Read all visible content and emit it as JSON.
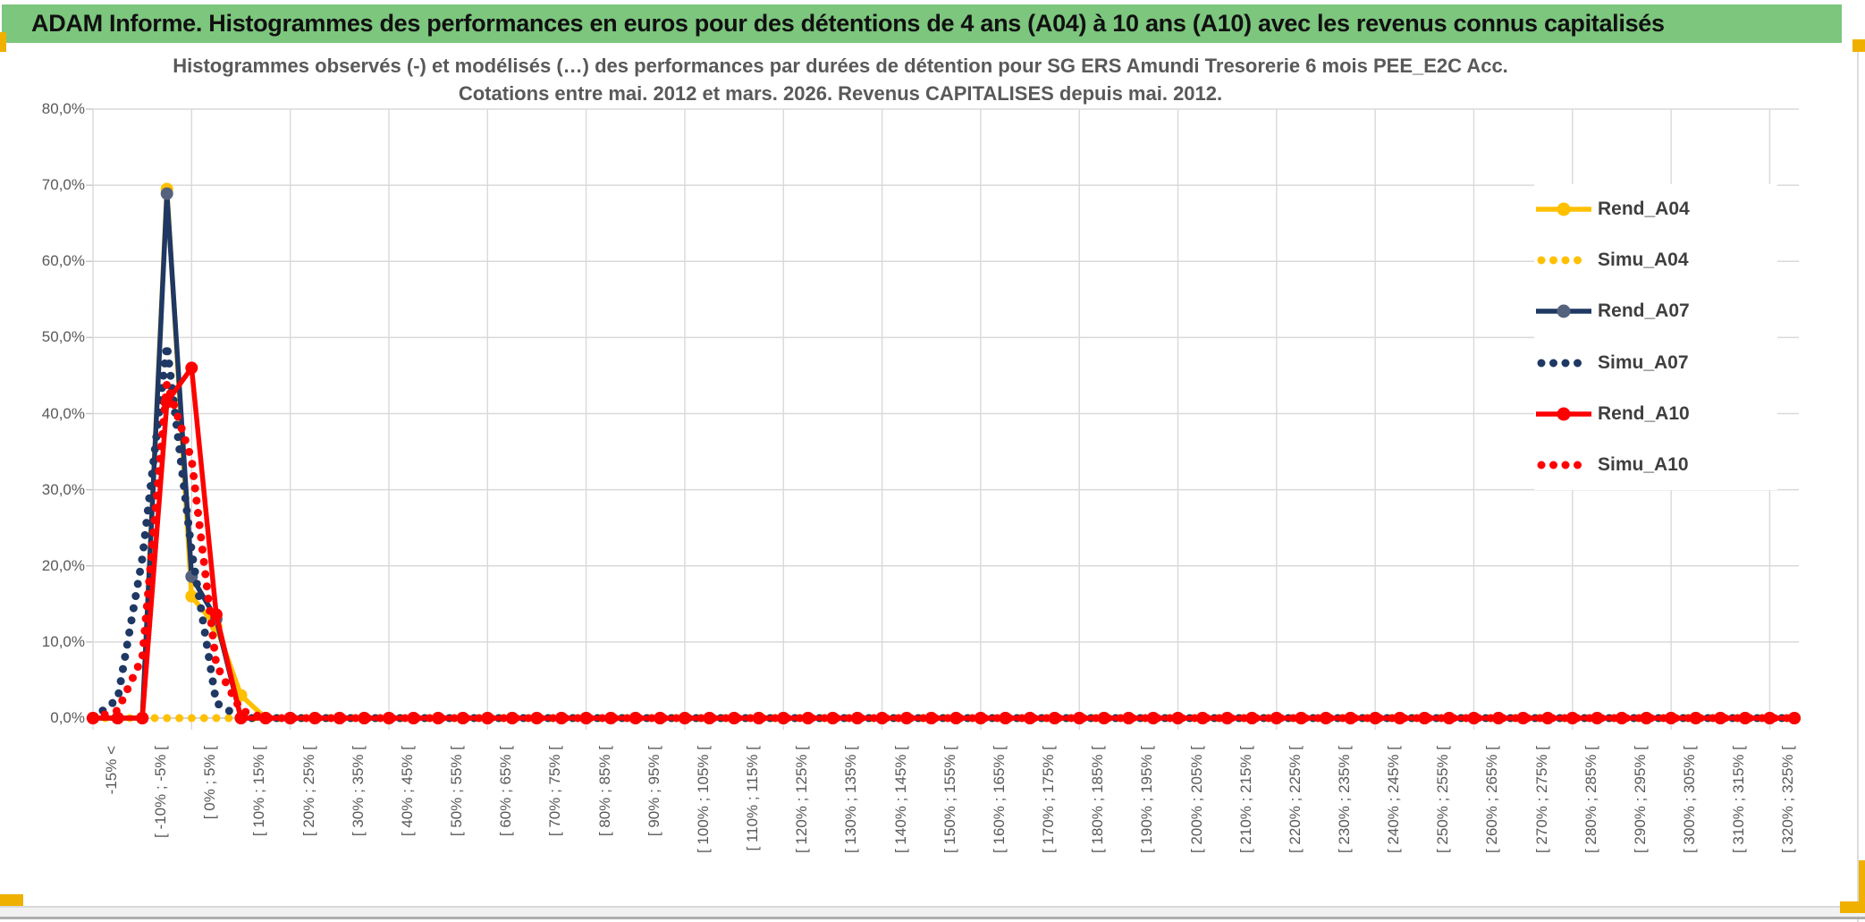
{
  "window": {
    "banner_title": "ADAM Informe. Histogrammes des performances en euros pour des détentions de 4 ans (A04) à 10 ans (A10) avec les revenus connus capitalisés"
  },
  "chart_data": {
    "type": "line",
    "title_line1": "Histogrammes observés (-) et modélisés (…) des performances par durées de détention pour SG ERS Amundi Tresorerie 6 mois PEE_E2C Acc.",
    "title_line2": "Cotations entre mai. 2012 et mars. 2026. Revenus CAPITALISES depuis mai. 2012.",
    "ylim": [
      0,
      80
    ],
    "y_major_unit": 10,
    "y_tick_labels": [
      "0,0%",
      "10,0%",
      "20,0%",
      "30,0%",
      "40,0%",
      "50,0%",
      "60,0%",
      "70,0%",
      "80,0%"
    ],
    "x_tick_labels": [
      "-15% <",
      "[ -10% ; -5% [",
      "[ 0% ; 5% [",
      "[ 10% ; 15% [",
      "[ 20% ; 25% [",
      "[ 30% ; 35% [",
      "[ 40% ; 45% [",
      "[ 50% ; 55% [",
      "[ 60% ; 65% [",
      "[ 70% ; 75% [",
      "[ 80% ; 85% [",
      "[ 90% ; 95% [",
      "[ 100% ; 105% [",
      "[ 110% ; 115% [",
      "[ 120% ; 125% [",
      "[ 130% ; 135% [",
      "[ 140% ; 145% [",
      "[ 150% ; 155% [",
      "[ 160% ; 165% [",
      "[ 170% ; 175% [",
      "[ 180% ; 185% [",
      "[ 190% ; 195% [",
      "[ 200% ; 205% [",
      "[ 210% ; 215% [",
      "[ 220% ; 225% [",
      "[ 230% ; 235% [",
      "[ 240% ; 245% [",
      "[ 250% ; 255% [",
      "[ 260% ; 265% [",
      "[ 270% ; 275% [",
      "[ 280% ; 285% [",
      "[ 290% ; 295% [",
      "[ 300% ; 305% [",
      "[ 310% ; 315% [",
      "[ 320% ; 325% ["
    ],
    "x_label_every": 2,
    "n_categories": 70,
    "default_value": 0,
    "grid": true,
    "legend_position": "right-inside",
    "series": [
      {
        "name": "Rend_A04",
        "style": "solid",
        "color": "#FFC000",
        "marker_color": "#FFC000",
        "values_sparse": {
          "3": 69.5,
          "4": 16,
          "5": 12,
          "6": 3
        }
      },
      {
        "name": "Simu_A04",
        "style": "dotted",
        "color": "#FFC000",
        "values_sparse": {}
      },
      {
        "name": "Rend_A07",
        "style": "solid",
        "color": "#1F3864",
        "marker_color": "#55627E",
        "values_sparse": {
          "3": 68.9,
          "4": 18.6,
          "5": 13
        }
      },
      {
        "name": "Simu_A07",
        "style": "dotted",
        "color": "#1F3864",
        "values_sparse": {
          "1": 2.5,
          "2": 21,
          "3": 49,
          "4": 22,
          "5": 2
        }
      },
      {
        "name": "Rend_A10",
        "style": "solid",
        "color": "#FF0000",
        "marker_color": "#FF0000",
        "values_sparse": {
          "3": 41.5,
          "4": 46,
          "5": 13.6
        }
      },
      {
        "name": "Simu_A10",
        "style": "dotted",
        "color": "#FF0000",
        "values_sparse": {
          "1": 1,
          "2": 8,
          "3": 44,
          "4": 34,
          "5": 7,
          "6": 1
        }
      }
    ]
  },
  "colors": {
    "banner_bg": "#7CC67D",
    "banner_text": "#111111",
    "title_text": "#595959",
    "axis_text": "#595959",
    "legend_text": "#3F3F3F",
    "gridline": "#D9D9D9",
    "axis_line": "#C6C6C6",
    "accent_gold": "#EFB000"
  }
}
